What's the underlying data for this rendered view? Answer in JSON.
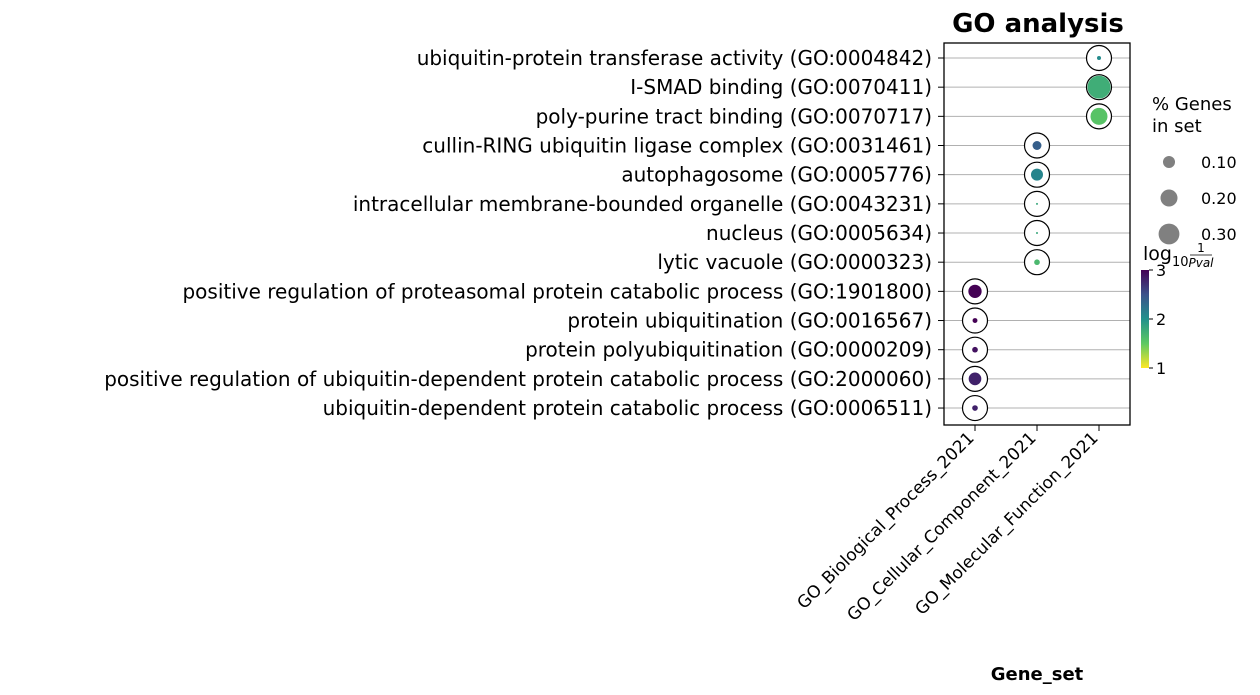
{
  "chart_data": {
    "type": "scatter",
    "subtype": "dotplot",
    "title": "GO analysis",
    "xlabel": "Gene_set",
    "ylabel": "",
    "categories": [
      "GO_Biological_Process_2021",
      "GO_Cellular_Component_2021",
      "GO_Molecular_Function_2021"
    ],
    "terms": [
      "ubiquitin-protein transferase activity (GO:0004842)",
      "I-SMAD binding (GO:0070411)",
      "poly-purine tract binding (GO:0070717)",
      "cullin-RING ubiquitin ligase complex (GO:0031461)",
      "autophagosome (GO:0005776)",
      "intracellular membrane-bounded organelle (GO:0043231)",
      "nucleus (GO:0005634)",
      "lytic vacuole (GO:0000323)",
      "positive regulation of proteasomal protein catabolic process (GO:1901800)",
      "protein ubiquitination (GO:0016567)",
      "protein polyubiquitination (GO:0000209)",
      "positive regulation of ubiquitin-dependent protein catabolic process (GO:2000060)",
      "ubiquitin-dependent protein catabolic process (GO:0006511)"
    ],
    "points": [
      {
        "term": "ubiquitin-protein transferase activity (GO:0004842)",
        "gene_set": "GO_Molecular_Function_2021",
        "pct_genes": 0.01,
        "log10_inv_pval": 2.05
      },
      {
        "term": "I-SMAD binding (GO:0070411)",
        "gene_set": "GO_Molecular_Function_2021",
        "pct_genes": 0.33,
        "log10_inv_pval": 1.75
      },
      {
        "term": "poly-purine tract binding (GO:0070717)",
        "gene_set": "GO_Molecular_Function_2021",
        "pct_genes": 0.18,
        "log10_inv_pval": 1.55
      },
      {
        "term": "cullin-RING ubiquitin ligase complex (GO:0031461)",
        "gene_set": "GO_Cellular_Component_2021",
        "pct_genes": 0.05,
        "log10_inv_pval": 2.4
      },
      {
        "term": "autophagosome (GO:0005776)",
        "gene_set": "GO_Cellular_Component_2021",
        "pct_genes": 0.09,
        "log10_inv_pval": 2.1
      },
      {
        "term": "intracellular membrane-bounded organelle (GO:0043231)",
        "gene_set": "GO_Cellular_Component_2021",
        "pct_genes": 0.002,
        "log10_inv_pval": 1.8
      },
      {
        "term": "nucleus (GO:0005634)",
        "gene_set": "GO_Cellular_Component_2021",
        "pct_genes": 0.001,
        "log10_inv_pval": 1.8
      },
      {
        "term": "lytic vacuole (GO:0000323)",
        "gene_set": "GO_Cellular_Component_2021",
        "pct_genes": 0.02,
        "log10_inv_pval": 1.65
      },
      {
        "term": "positive regulation of proteasomal protein catabolic process (GO:1901800)",
        "gene_set": "GO_Biological_Process_2021",
        "pct_genes": 0.11,
        "log10_inv_pval": 3.0
      },
      {
        "term": "protein ubiquitination (GO:0016567)",
        "gene_set": "GO_Biological_Process_2021",
        "pct_genes": 0.015,
        "log10_inv_pval": 3.0
      },
      {
        "term": "protein polyubiquitination (GO:0000209)",
        "gene_set": "GO_Biological_Process_2021",
        "pct_genes": 0.02,
        "log10_inv_pval": 2.9
      },
      {
        "term": "positive regulation of ubiquitin-dependent protein catabolic process (GO:2000060)",
        "gene_set": "GO_Biological_Process_2021",
        "pct_genes": 0.1,
        "log10_inv_pval": 2.8
      },
      {
        "term": "ubiquitin-dependent protein catabolic process (GO:0006511)",
        "gene_set": "GO_Biological_Process_2021",
        "pct_genes": 0.02,
        "log10_inv_pval": 2.8
      }
    ],
    "size_legend": {
      "title_line1": "% Genes",
      "title_line2": "in set",
      "values": [
        0.1,
        0.2,
        0.3
      ],
      "labels": [
        "0.10",
        "0.20",
        "0.30"
      ]
    },
    "colorbar": {
      "label_base": "log",
      "label_sub": "10",
      "label_num": "1",
      "label_den": "Pval",
      "range": [
        1,
        3
      ],
      "ticks": [
        1,
        2,
        3
      ],
      "tick_labels": [
        "1",
        "2",
        "3"
      ],
      "colormap": "viridis_r"
    },
    "grid": "horizontal",
    "legend_position": "right"
  }
}
